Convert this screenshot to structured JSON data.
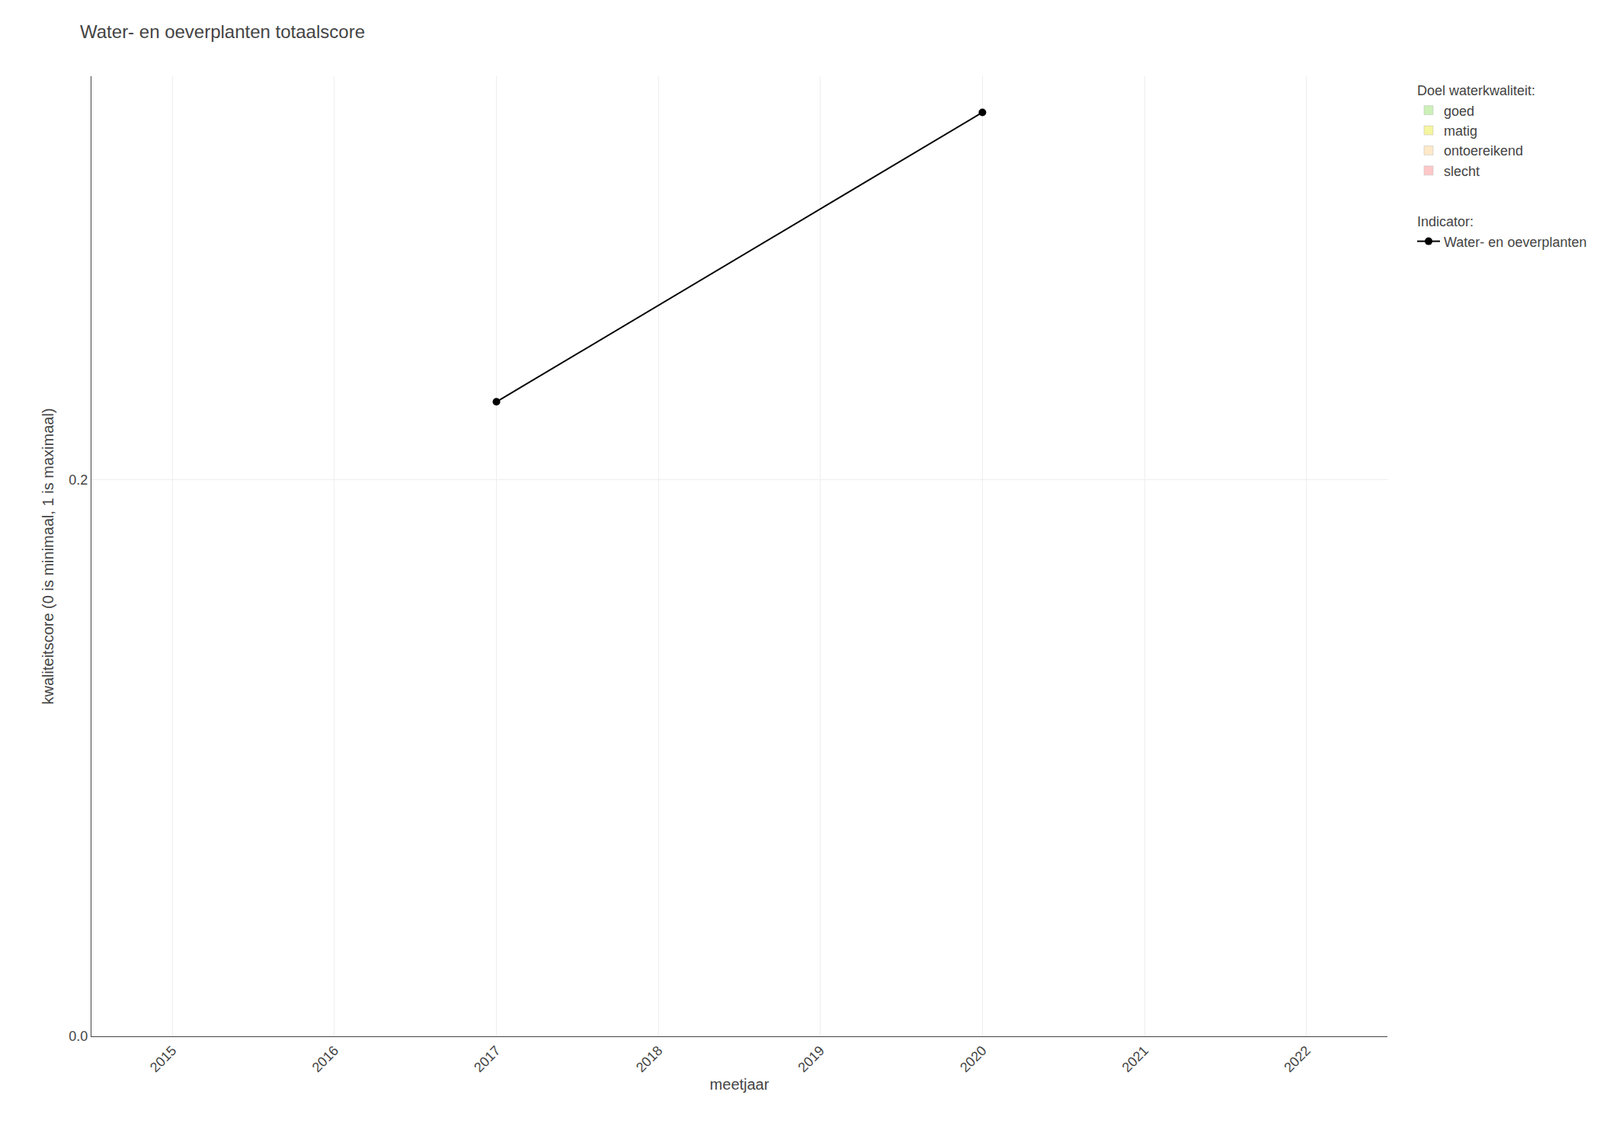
{
  "chart_data": {
    "type": "line",
    "title": "Water- en oeverplanten totaalscore",
    "x_label": "meetjaar",
    "y_label": "kwaliteitscore (0 is minimaal, 1 is maximaal)",
    "x": [
      2017,
      2020
    ],
    "series": [
      {
        "name": "goed",
        "type": "bar",
        "color": "#ccf0b8",
        "values": [
          null,
          null
        ],
        "legend_group": "Doel waterkwaliteit:"
      },
      {
        "name": "matig",
        "type": "bar",
        "color": "#f5f5a0",
        "values": [
          null,
          null
        ],
        "legend_group": "Doel waterkwaliteit:"
      },
      {
        "name": "ontoereikend",
        "type": "bar",
        "color": "#fde8c8",
        "values": [
          null,
          null
        ],
        "legend_group": "Doel waterkwaliteit:"
      },
      {
        "name": "slecht",
        "type": "bar",
        "color": "#ffc8c8",
        "values": [
          null,
          null
        ],
        "legend_group": "Doel waterkwaliteit:"
      },
      {
        "name": "Water- en oeverplanten",
        "type": "line",
        "color": "#000000",
        "marker": "circle",
        "values": [
          0.228,
          0.332
        ],
        "legend_group": "Indicator:"
      }
    ],
    "xlim": [
      2014.5,
      2022.5
    ],
    "xticks": [
      2015,
      2016,
      2017,
      2018,
      2019,
      2020,
      2021,
      2022
    ],
    "ylim": [
      0.0,
      0.345
    ],
    "yticks": [
      {
        "value": 0.0,
        "label": "0.0"
      },
      0.2
    ],
    "grid": true
  }
}
